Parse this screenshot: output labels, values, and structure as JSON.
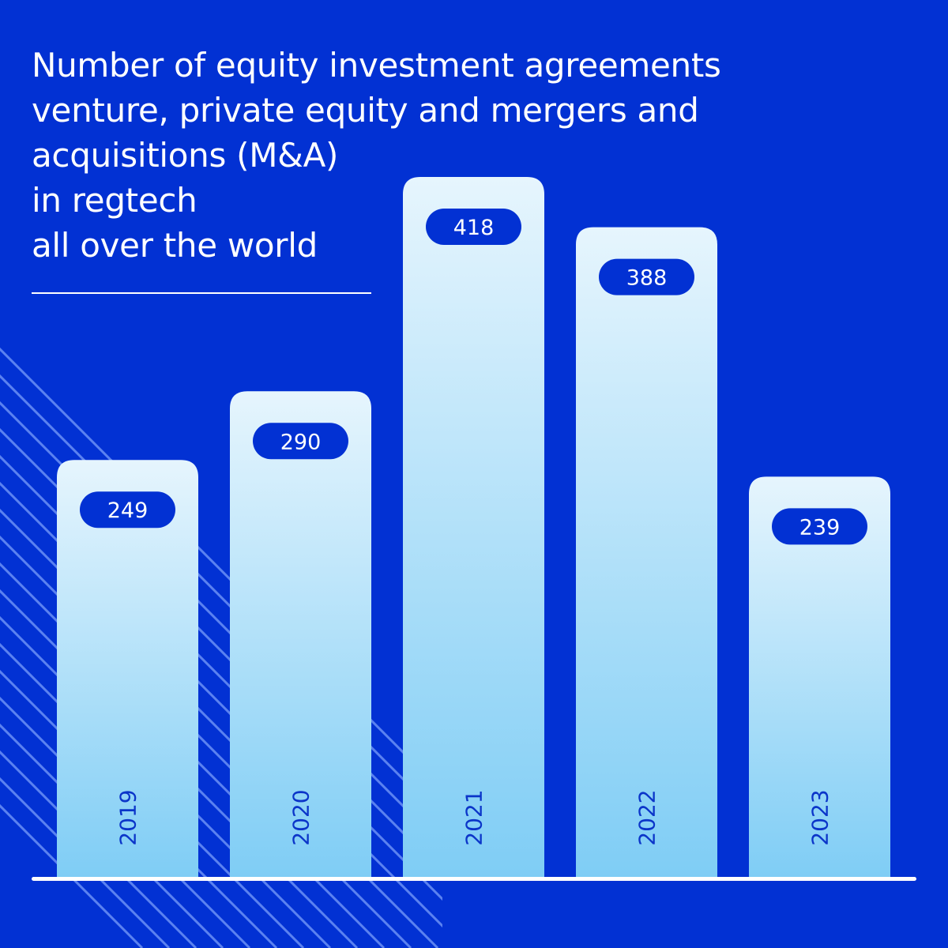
{
  "title_lines": [
    "Number of equity investment agreements",
    "venture, private equity and mergers and",
    "acquisitions (M&A)",
    "in regtech",
    "all over the world"
  ],
  "colors": {
    "background": "#0231d3",
    "bar_top": "#e6f5fd",
    "bar_bottom": "#7fcdf5",
    "label_pill": "#0231d3",
    "label_text": "#ffffff",
    "year_text": "#0b35c9",
    "baseline": "#ffffff",
    "stripes": "#5b82f0"
  },
  "chart_data": {
    "type": "bar",
    "categories": [
      "2019",
      "2020",
      "2021",
      "2022",
      "2023"
    ],
    "values": [
      249,
      290,
      418,
      388,
      239
    ],
    "title": "Number of equity investment agreements venture, private equity and mergers and acquisitions (M&A) in regtech all over the world",
    "xlabel": "",
    "ylabel": "",
    "grid": false,
    "legend": "none"
  }
}
